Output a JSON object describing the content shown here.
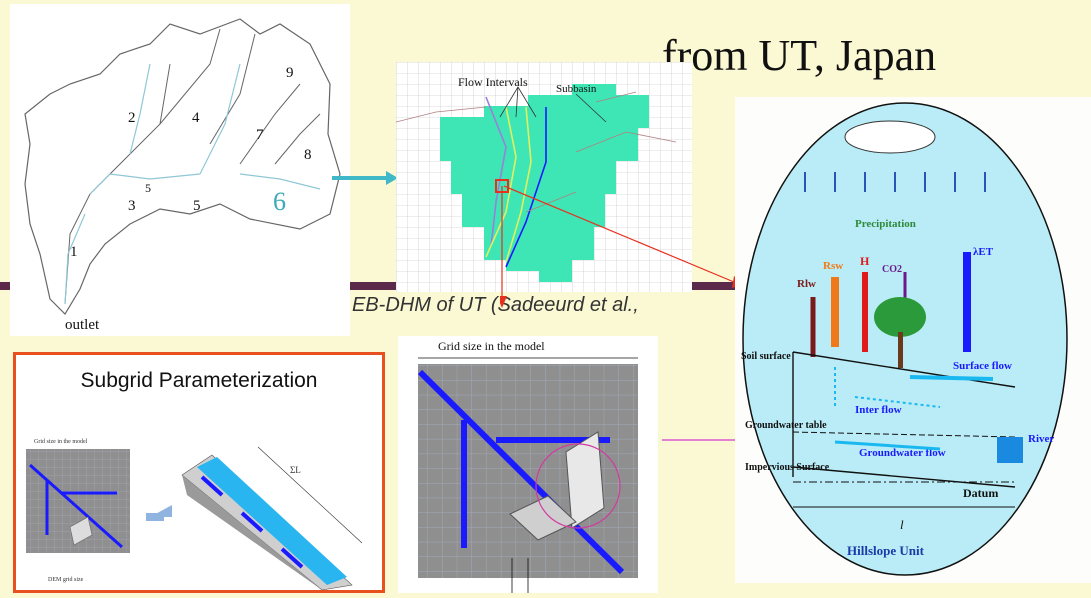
{
  "slide": {
    "title": "from UT, Japan",
    "caption": "EB-DHM of UT (Sadeeurd et al.,"
  },
  "basin_map": {
    "subbasin_numbers": [
      "1",
      "2",
      "3",
      "4",
      "5",
      "5",
      "6",
      "7",
      "8",
      "9"
    ],
    "outlet_label": "outlet"
  },
  "grid_map": {
    "label_flow_intervals": "Flow Intervals",
    "label_subbasin": "Subbasin"
  },
  "subgrid": {
    "title": "Subgrid Parameterization",
    "grid_size_label": "Grid size in the model",
    "dem_label": "DEM grid size",
    "sum_label": "ΣL"
  },
  "grid_detail": {
    "grid_size_label": "Grid size in the model"
  },
  "hillslope": {
    "precipitation": "Precipitation",
    "rlw": "Rlw",
    "rsw": "Rsw",
    "h": "H",
    "co2": "CO2",
    "let": "λET",
    "soil_surface": "Soil surface",
    "surface_flow": "Surface flow",
    "inter_flow": "Inter flow",
    "groundwater_table": "Groundwater table",
    "groundwater_flow": "Groundwater flow",
    "river": "River",
    "impervious": "Impervious Surface",
    "datum": "Datum",
    "l": "l",
    "unit": "Hillslope Unit"
  },
  "colors": {
    "background": "#fbf8d4",
    "accent_rule": "#5b2a4a",
    "subbasin_fill": "#3ee6b5",
    "flow_blue": "#1a1aff",
    "link_arrow": "#3fb8c8",
    "red_arrow": "#e8301f",
    "subgrid_border": "#e8501f",
    "ellipse_fill": "#b9ecf6"
  }
}
